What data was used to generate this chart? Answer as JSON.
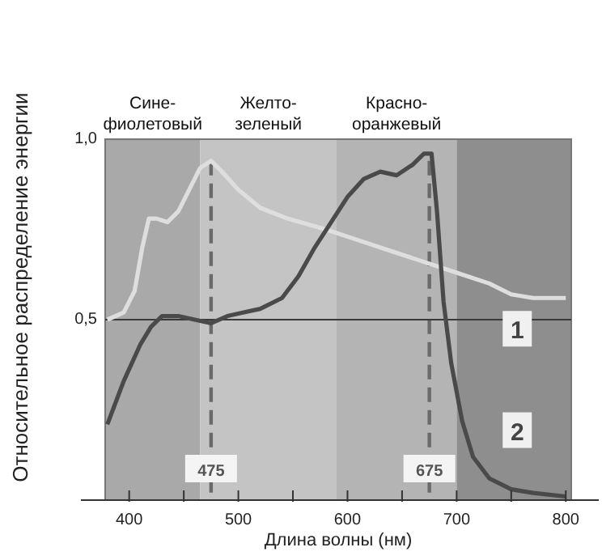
{
  "chart_data": {
    "type": "line",
    "xlabel": "Длина волны (нм)",
    "ylabel": "Относительное распределение энергии",
    "xlim": [
      378,
      805
    ],
    "ylim": [
      0,
      1.0
    ],
    "xticks": [
      400,
      {
        "value": 450,
        "label": null
      },
      500,
      {
        "value": 550,
        "label": null
      },
      600,
      {
        "value": 650,
        "label": null
      },
      700,
      {
        "value": 750,
        "label": null
      },
      800
    ],
    "yticks": [
      {
        "value": 0.5,
        "label": "0,5"
      },
      {
        "value": 1.0,
        "label": "1,0"
      }
    ],
    "grid": false,
    "legend": false,
    "marker": "none",
    "line_style": "solid",
    "bands": [
      {
        "axis": "x",
        "from": 378,
        "to": 465,
        "label": "Сине-фиолетовый",
        "color": "#a9a9a9"
      },
      {
        "axis": "x",
        "from": 465,
        "to": 590,
        "label": "Желто-зеленый",
        "color": "#c4c4c4"
      },
      {
        "axis": "x",
        "from": 590,
        "to": 700,
        "label": "Красно-оранжевый",
        "color": "#b4b4b4"
      },
      {
        "axis": "x",
        "from": 700,
        "to": 805,
        "color": "#8e8e8e"
      }
    ],
    "ref_lines": [
      {
        "axis": "x",
        "value": 475,
        "label": "475",
        "color": "#6a6a6a",
        "line_style": "dashed"
      },
      {
        "axis": "x",
        "value": 675,
        "label": "675",
        "color": "#6a6a6a",
        "line_style": "dashed"
      },
      {
        "axis": "y",
        "value": 0.5,
        "color": "#3a3a3a",
        "line_style": "solid"
      }
    ],
    "series": [
      {
        "name": "1",
        "color": "#dedede",
        "x": [
          380,
          395,
          405,
          412,
          418,
          425,
          435,
          445,
          455,
          465,
          475,
          485,
          500,
          520,
          545,
          580,
          610,
          640,
          670,
          700,
          730,
          750,
          770,
          800
        ],
        "values": [
          0.5,
          0.52,
          0.58,
          0.7,
          0.78,
          0.78,
          0.77,
          0.8,
          0.86,
          0.92,
          0.94,
          0.91,
          0.86,
          0.81,
          0.78,
          0.75,
          0.72,
          0.69,
          0.66,
          0.63,
          0.6,
          0.57,
          0.56,
          0.56
        ]
      },
      {
        "name": "2",
        "color": "#4a4a4a",
        "x": [
          380,
          395,
          410,
          420,
          430,
          445,
          460,
          475,
          490,
          505,
          520,
          540,
          555,
          570,
          585,
          600,
          615,
          630,
          645,
          660,
          670,
          677,
          682,
          688,
          695,
          705,
          715,
          730,
          750,
          770,
          800
        ],
        "values": [
          0.21,
          0.33,
          0.43,
          0.48,
          0.51,
          0.51,
          0.5,
          0.49,
          0.51,
          0.52,
          0.53,
          0.56,
          0.62,
          0.7,
          0.77,
          0.84,
          0.89,
          0.91,
          0.9,
          0.93,
          0.96,
          0.96,
          0.8,
          0.55,
          0.38,
          0.22,
          0.12,
          0.06,
          0.03,
          0.02,
          0.01
        ]
      }
    ]
  }
}
